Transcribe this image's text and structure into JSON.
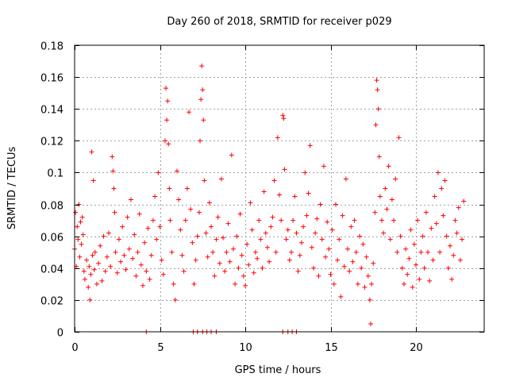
{
  "chart_data": {
    "type": "scatter",
    "title": "Day 260 of 2018, SRMTID for receiver p029",
    "xlabel": "GPS time / hours",
    "ylabel": "SRMTID / TECUs",
    "xlim": [
      0,
      24
    ],
    "ylim": [
      0,
      0.18
    ],
    "xticks": [
      0,
      5,
      10,
      15,
      20
    ],
    "xtick_labels": [
      "0",
      "5",
      "10",
      "15",
      "20"
    ],
    "yticks": [
      0,
      0.02,
      0.04,
      0.06,
      0.08,
      0.1,
      0.12,
      0.14,
      0.16,
      0.18
    ],
    "ytick_labels": [
      "0",
      "0.02",
      "0.04",
      "0.06",
      "0.08",
      "0.1",
      "0.12",
      "0.14",
      "0.16",
      "0.18"
    ],
    "grid": true,
    "marker": "+",
    "color": "#ff0000",
    "series": [
      {
        "name": "SRMTID",
        "points": [
          [
            0.0,
            0.052
          ],
          [
            0.05,
            0.075
          ],
          [
            0.1,
            0.041
          ],
          [
            0.15,
            0.066
          ],
          [
            0.2,
            0.058
          ],
          [
            0.25,
            0.08
          ],
          [
            0.3,
            0.047
          ],
          [
            0.35,
            0.069
          ],
          [
            0.4,
            0.055
          ],
          [
            0.45,
            0.072
          ],
          [
            0.5,
            0.061
          ],
          [
            0.55,
            0.038
          ],
          [
            0.6,
            0.033
          ],
          [
            0.7,
            0.045
          ],
          [
            0.8,
            0.028
          ],
          [
            0.85,
            0.041
          ],
          [
            0.9,
            0.02
          ],
          [
            0.95,
            0.036
          ],
          [
            1.0,
            0.113
          ],
          [
            1.05,
            0.048
          ],
          [
            1.1,
            0.095
          ],
          [
            1.15,
            0.039
          ],
          [
            1.2,
            0.05
          ],
          [
            1.3,
            0.03
          ],
          [
            1.4,
            0.043
          ],
          [
            1.5,
            0.054
          ],
          [
            1.6,
            0.032
          ],
          [
            1.7,
            0.06
          ],
          [
            1.8,
            0.038
          ],
          [
            1.9,
            0.047
          ],
          [
            2.0,
            0.062
          ],
          [
            2.1,
            0.041
          ],
          [
            2.2,
            0.11
          ],
          [
            2.25,
            0.101
          ],
          [
            2.3,
            0.09
          ],
          [
            2.35,
            0.075
          ],
          [
            2.4,
            0.05
          ],
          [
            2.5,
            0.037
          ],
          [
            2.6,
            0.058
          ],
          [
            2.7,
            0.044
          ],
          [
            2.8,
            0.066
          ],
          [
            2.9,
            0.048
          ],
          [
            3.0,
            0.039
          ],
          [
            3.1,
            0.072
          ],
          [
            3.2,
            0.052
          ],
          [
            3.3,
            0.083
          ],
          [
            3.4,
            0.046
          ],
          [
            3.5,
            0.061
          ],
          [
            3.6,
            0.035
          ],
          [
            3.7,
            0.05
          ],
          [
            3.8,
            0.074
          ],
          [
            3.9,
            0.042
          ],
          [
            4.0,
            0.029
          ],
          [
            4.1,
            0.056
          ],
          [
            4.2,
            0.038
          ],
          [
            4.3,
            0.065
          ],
          [
            4.4,
            0.033
          ],
          [
            4.5,
            0.048
          ],
          [
            4.6,
            0.07
          ],
          [
            4.7,
            0.085
          ],
          [
            4.8,
            0.058
          ],
          [
            4.9,
            0.1
          ],
          [
            5.0,
            0.066
          ],
          [
            5.1,
            0.045
          ],
          [
            5.2,
            0.036
          ],
          [
            5.3,
            0.12
          ],
          [
            5.35,
            0.153
          ],
          [
            5.4,
            0.133
          ],
          [
            5.45,
            0.145
          ],
          [
            5.5,
            0.118
          ],
          [
            5.55,
            0.09
          ],
          [
            5.6,
            0.07
          ],
          [
            5.7,
            0.05
          ],
          [
            5.8,
            0.03
          ],
          [
            5.9,
            0.02
          ],
          [
            6.0,
            0.101
          ],
          [
            6.1,
            0.083
          ],
          [
            6.2,
            0.064
          ],
          [
            6.3,
            0.048
          ],
          [
            6.4,
            0.038
          ],
          [
            6.5,
            0.07
          ],
          [
            6.6,
            0.09
          ],
          [
            6.7,
            0.138
          ],
          [
            6.8,
            0.077
          ],
          [
            6.9,
            0.056
          ],
          [
            7.0,
            0.03
          ],
          [
            7.1,
            0.045
          ],
          [
            7.2,
            0.06
          ],
          [
            7.3,
            0.075
          ],
          [
            7.35,
            0.12
          ],
          [
            7.4,
            0.146
          ],
          [
            7.45,
            0.167
          ],
          [
            7.5,
            0.152
          ],
          [
            7.55,
            0.133
          ],
          [
            7.6,
            0.095
          ],
          [
            7.7,
            0.062
          ],
          [
            7.8,
            0.047
          ],
          [
            7.9,
            0.081
          ],
          [
            8.0,
            0.066
          ],
          [
            8.1,
            0.05
          ],
          [
            8.2,
            0.035
          ],
          [
            8.3,
            0.058
          ],
          [
            8.4,
            0.072
          ],
          [
            8.5,
            0.043
          ],
          [
            8.6,
            0.096
          ],
          [
            8.7,
            0.059
          ],
          [
            8.8,
            0.038
          ],
          [
            8.9,
            0.05
          ],
          [
            9.0,
            0.068
          ],
          [
            9.1,
            0.044
          ],
          [
            9.2,
            0.111
          ],
          [
            9.3,
            0.052
          ],
          [
            9.4,
            0.03
          ],
          [
            9.5,
            0.06
          ],
          [
            9.6,
            0.04
          ],
          [
            9.7,
            0.074
          ],
          [
            9.8,
            0.048
          ],
          [
            9.9,
            0.035
          ],
          [
            10.0,
            0.029
          ],
          [
            10.1,
            0.055
          ],
          [
            10.2,
            0.042
          ],
          [
            10.3,
            0.081
          ],
          [
            10.4,
            0.064
          ],
          [
            10.5,
            0.037
          ],
          [
            10.6,
            0.05
          ],
          [
            10.7,
            0.046
          ],
          [
            10.8,
            0.07
          ],
          [
            10.9,
            0.058
          ],
          [
            11.0,
            0.04
          ],
          [
            11.1,
            0.088
          ],
          [
            11.2,
            0.062
          ],
          [
            11.3,
            0.053
          ],
          [
            11.4,
            0.044
          ],
          [
            11.5,
            0.066
          ],
          [
            11.6,
            0.072
          ],
          [
            11.7,
            0.095
          ],
          [
            11.8,
            0.05
          ],
          [
            11.9,
            0.122
          ],
          [
            12.0,
            0.086
          ],
          [
            12.1,
            0.07
          ],
          [
            12.2,
            0.136
          ],
          [
            12.25,
            0.134
          ],
          [
            12.3,
            0.102
          ],
          [
            12.4,
            0.058
          ],
          [
            12.5,
            0.064
          ],
          [
            12.6,
            0.045
          ],
          [
            12.7,
            0.05
          ],
          [
            12.8,
            0.07
          ],
          [
            12.9,
            0.085
          ],
          [
            13.0,
            0.062
          ],
          [
            13.1,
            0.038
          ],
          [
            13.2,
            0.048
          ],
          [
            13.3,
            0.056
          ],
          [
            13.4,
            0.066
          ],
          [
            13.5,
            0.1
          ],
          [
            13.6,
            0.073
          ],
          [
            13.7,
            0.087
          ],
          [
            13.8,
            0.117
          ],
          [
            13.9,
            0.053
          ],
          [
            14.0,
            0.04
          ],
          [
            14.1,
            0.062
          ],
          [
            14.2,
            0.071
          ],
          [
            14.3,
            0.035
          ],
          [
            14.4,
            0.08
          ],
          [
            14.5,
            0.058
          ],
          [
            14.6,
            0.104
          ],
          [
            14.7,
            0.047
          ],
          [
            14.8,
            0.069
          ],
          [
            14.9,
            0.052
          ],
          [
            15.0,
            0.036
          ],
          [
            15.1,
            0.064
          ],
          [
            15.2,
            0.03
          ],
          [
            15.3,
            0.08
          ],
          [
            15.4,
            0.045
          ],
          [
            15.5,
            0.058
          ],
          [
            15.6,
            0.022
          ],
          [
            15.7,
            0.073
          ],
          [
            15.8,
            0.041
          ],
          [
            15.9,
            0.096
          ],
          [
            16.0,
            0.052
          ],
          [
            16.1,
            0.038
          ],
          [
            16.2,
            0.066
          ],
          [
            16.3,
            0.044
          ],
          [
            16.4,
            0.07
          ],
          [
            16.5,
            0.05
          ],
          [
            16.6,
            0.03
          ],
          [
            16.7,
            0.06
          ],
          [
            16.8,
            0.04
          ],
          [
            16.9,
            0.055
          ],
          [
            17.0,
            0.028
          ],
          [
            17.1,
            0.047
          ],
          [
            17.2,
            0.035
          ],
          [
            17.3,
            0.02
          ],
          [
            17.35,
            0.005
          ],
          [
            17.4,
            0.03
          ],
          [
            17.5,
            0.043
          ],
          [
            17.6,
            0.075
          ],
          [
            17.65,
            0.13
          ],
          [
            17.7,
            0.158
          ],
          [
            17.75,
            0.152
          ],
          [
            17.8,
            0.14
          ],
          [
            17.85,
            0.11
          ],
          [
            17.9,
            0.085
          ],
          [
            18.0,
            0.07
          ],
          [
            18.1,
            0.062
          ],
          [
            18.2,
            0.09
          ],
          [
            18.3,
            0.077
          ],
          [
            18.4,
            0.104
          ],
          [
            18.5,
            0.058
          ],
          [
            18.6,
            0.083
          ],
          [
            18.7,
            0.07
          ],
          [
            18.8,
            0.096
          ],
          [
            18.9,
            0.05
          ],
          [
            19.0,
            0.122
          ],
          [
            19.1,
            0.06
          ],
          [
            19.2,
            0.04
          ],
          [
            19.3,
            0.03
          ],
          [
            19.4,
            0.052
          ],
          [
            19.5,
            0.036
          ],
          [
            19.6,
            0.046
          ],
          [
            19.7,
            0.064
          ],
          [
            19.8,
            0.028
          ],
          [
            19.9,
            0.055
          ],
          [
            20.0,
            0.042
          ],
          [
            20.1,
            0.07
          ],
          [
            20.2,
            0.033
          ],
          [
            20.3,
            0.05
          ],
          [
            20.4,
            0.06
          ],
          [
            20.5,
            0.04
          ],
          [
            20.6,
            0.075
          ],
          [
            20.7,
            0.05
          ],
          [
            20.8,
            0.032
          ],
          [
            20.9,
            0.065
          ],
          [
            21.0,
            0.045
          ],
          [
            21.1,
            0.085
          ],
          [
            21.2,
            0.068
          ],
          [
            21.3,
            0.1
          ],
          [
            21.4,
            0.05
          ],
          [
            21.5,
            0.09
          ],
          [
            21.6,
            0.073
          ],
          [
            21.7,
            0.095
          ],
          [
            21.8,
            0.06
          ],
          [
            21.9,
            0.04
          ],
          [
            22.0,
            0.054
          ],
          [
            22.1,
            0.033
          ],
          [
            22.2,
            0.048
          ],
          [
            22.3,
            0.07
          ],
          [
            22.4,
            0.062
          ],
          [
            22.5,
            0.078
          ],
          [
            22.6,
            0.045
          ],
          [
            22.7,
            0.058
          ],
          [
            22.8,
            0.082
          ],
          [
            4.2,
            0.0
          ],
          [
            6.95,
            0.0
          ],
          [
            7.2,
            0.0
          ],
          [
            7.5,
            0.0
          ],
          [
            7.75,
            0.0
          ],
          [
            8.0,
            0.0
          ],
          [
            8.3,
            0.0
          ],
          [
            12.2,
            0.0
          ],
          [
            12.5,
            0.0
          ],
          [
            12.75,
            0.0
          ],
          [
            13.0,
            0.0
          ]
        ]
      }
    ]
  }
}
